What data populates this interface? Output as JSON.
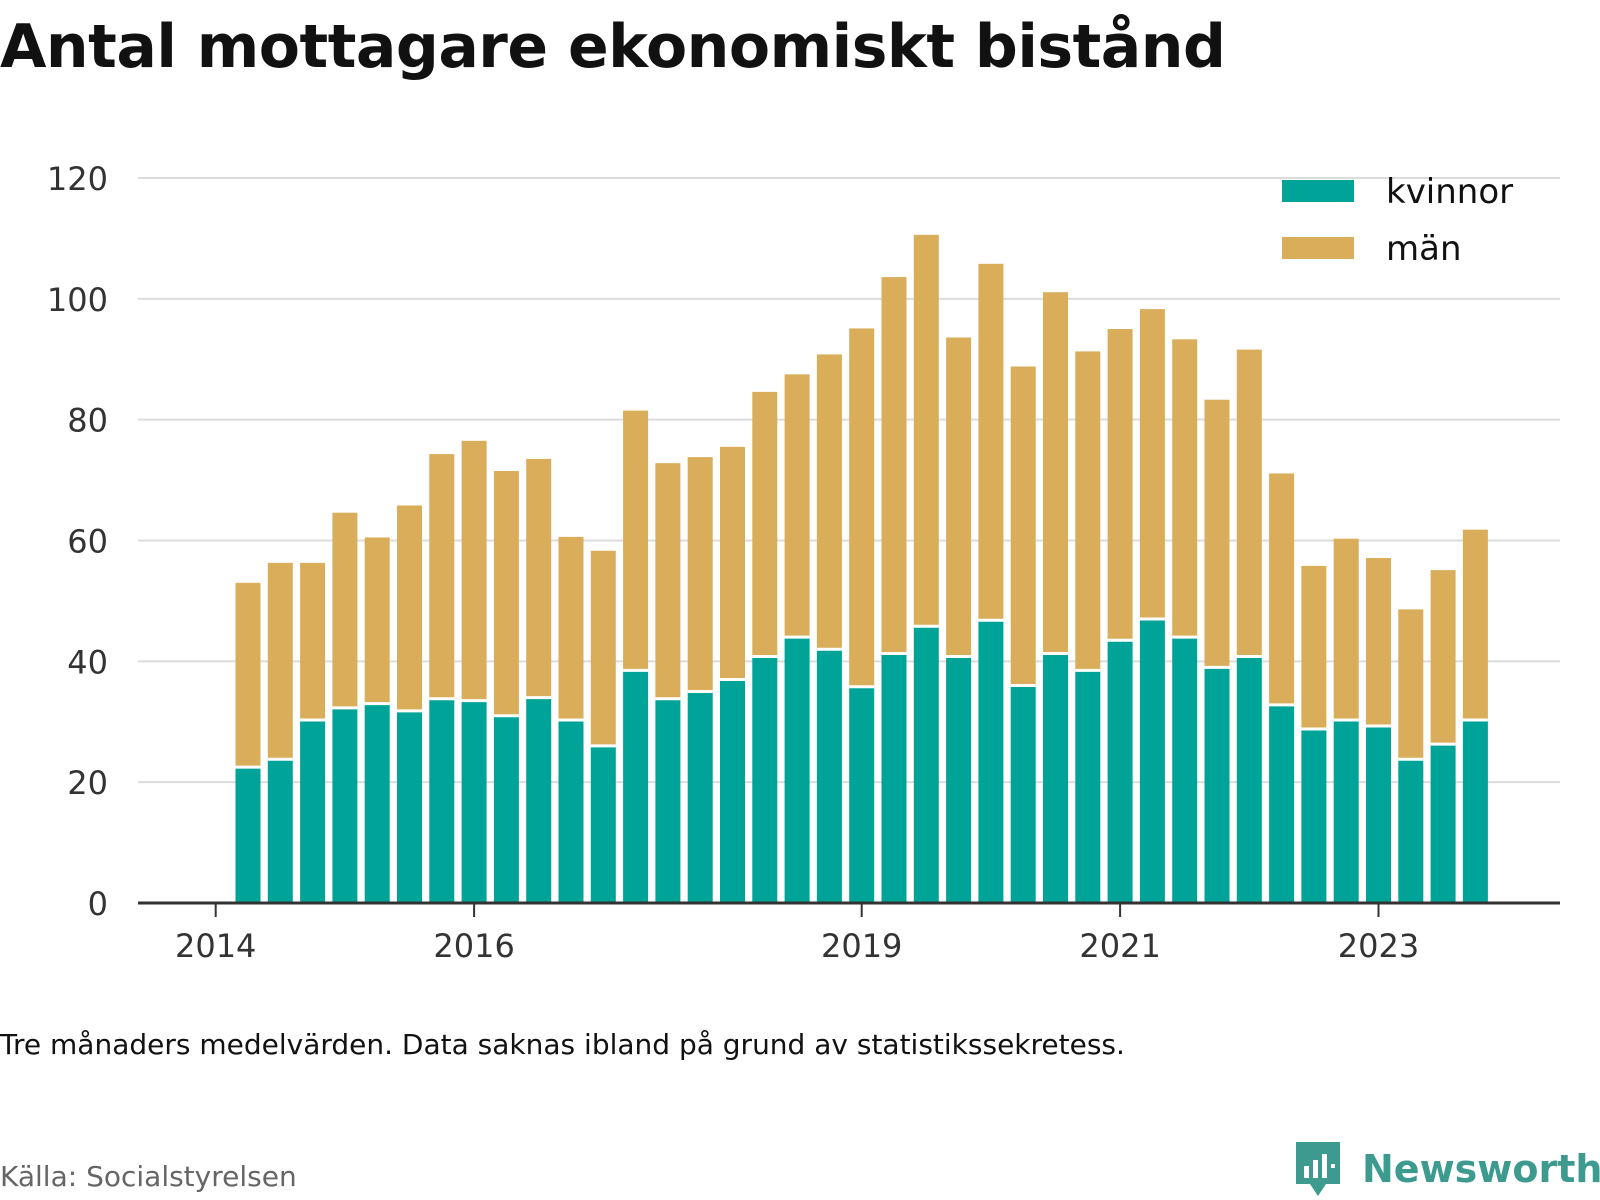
{
  "title": "Antal mottagare ekonomiskt bistånd",
  "note": "Tre månaders medelvärden. Data saknas ibland på grund av statistikssekretess.",
  "source": "Källa: Socialstyrelsen",
  "brand": {
    "name": "Newsworthy",
    "icon": "newsworthy-logo-icon"
  },
  "colors": {
    "kvinnor": "#00a398",
    "man": "#d9ad59",
    "grid": "#dcdcdc",
    "axis": "#333333"
  },
  "chart_data": {
    "type": "bar",
    "stacked": true,
    "x_ticks": [
      {
        "label": "2014",
        "index": -1
      },
      {
        "label": "2016",
        "index": 7
      },
      {
        "label": "2019",
        "index": 19
      },
      {
        "label": "2021",
        "index": 27
      },
      {
        "label": "2023",
        "index": 35
      }
    ],
    "yticks": [
      0,
      20,
      40,
      60,
      80,
      100,
      120
    ],
    "ylim": [
      0,
      120
    ],
    "grid": true,
    "legend": "top-right",
    "series": [
      {
        "name": "kvinnor",
        "values": [
          22.5,
          23.8,
          30.3,
          32.3,
          33.0,
          31.8,
          33.8,
          33.5,
          31.0,
          34.0,
          30.3,
          26.0,
          38.5,
          33.8,
          35.0,
          37.0,
          40.8,
          44.0,
          42.0,
          35.8,
          41.3,
          45.8,
          40.8,
          46.8,
          36.0,
          41.3,
          38.5,
          43.5,
          47.0,
          44.0,
          39.0,
          40.8,
          32.8,
          28.8,
          30.3,
          29.3,
          23.8,
          26.3,
          30.3
        ]
      },
      {
        "name": "män",
        "values": [
          30.5,
          32.5,
          26.0,
          32.3,
          27.5,
          34.0,
          40.5,
          43.0,
          40.5,
          39.5,
          30.3,
          32.3,
          43.0,
          39.0,
          38.8,
          38.5,
          43.8,
          43.5,
          48.8,
          59.3,
          62.3,
          64.8,
          52.8,
          59.0,
          52.8,
          59.8,
          52.8,
          51.5,
          51.3,
          49.3,
          44.3,
          50.8,
          38.3,
          27.0,
          30.0,
          27.8,
          24.8,
          28.8,
          31.5
        ]
      }
    ]
  }
}
